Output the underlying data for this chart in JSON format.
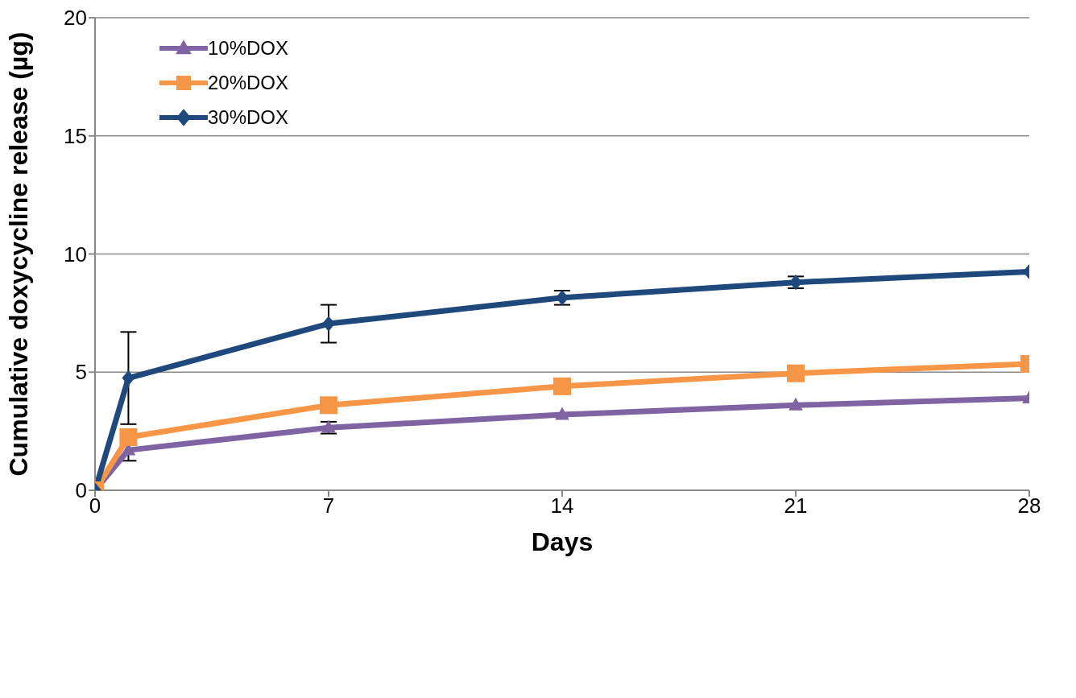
{
  "chart_data": {
    "type": "line",
    "xlabel": "Days",
    "ylabel": "Cumulative doxycycline release (µg)",
    "x": [
      0,
      1,
      7,
      14,
      21,
      28
    ],
    "series": [
      {
        "name": "10%DOX",
        "color": "#7f63a3",
        "marker": "triangle",
        "values": [
          0,
          1.7,
          2.65,
          3.2,
          3.6,
          3.9
        ],
        "errors": [
          null,
          0.45,
          0.25,
          null,
          null,
          null
        ]
      },
      {
        "name": "20%DOX",
        "color": "#f79646",
        "marker": "square",
        "values": [
          0,
          2.25,
          3.6,
          4.4,
          4.95,
          5.35
        ],
        "errors": [
          null,
          null,
          null,
          null,
          null,
          null
        ]
      },
      {
        "name": "30%DOX",
        "color": "#1f497d",
        "marker": "diamond",
        "values": [
          0,
          4.75,
          7.05,
          8.15,
          8.8,
          9.25
        ],
        "errors": [
          null,
          1.95,
          0.8,
          0.3,
          0.25,
          null
        ]
      }
    ],
    "xlim": [
      0,
      28
    ],
    "xticks": [
      0,
      7,
      14,
      21,
      28
    ],
    "ylim": [
      0,
      20
    ],
    "yticks": [
      0,
      5,
      10,
      15,
      20
    ],
    "grid": "y",
    "legend": "top left",
    "line_style": "solid"
  }
}
